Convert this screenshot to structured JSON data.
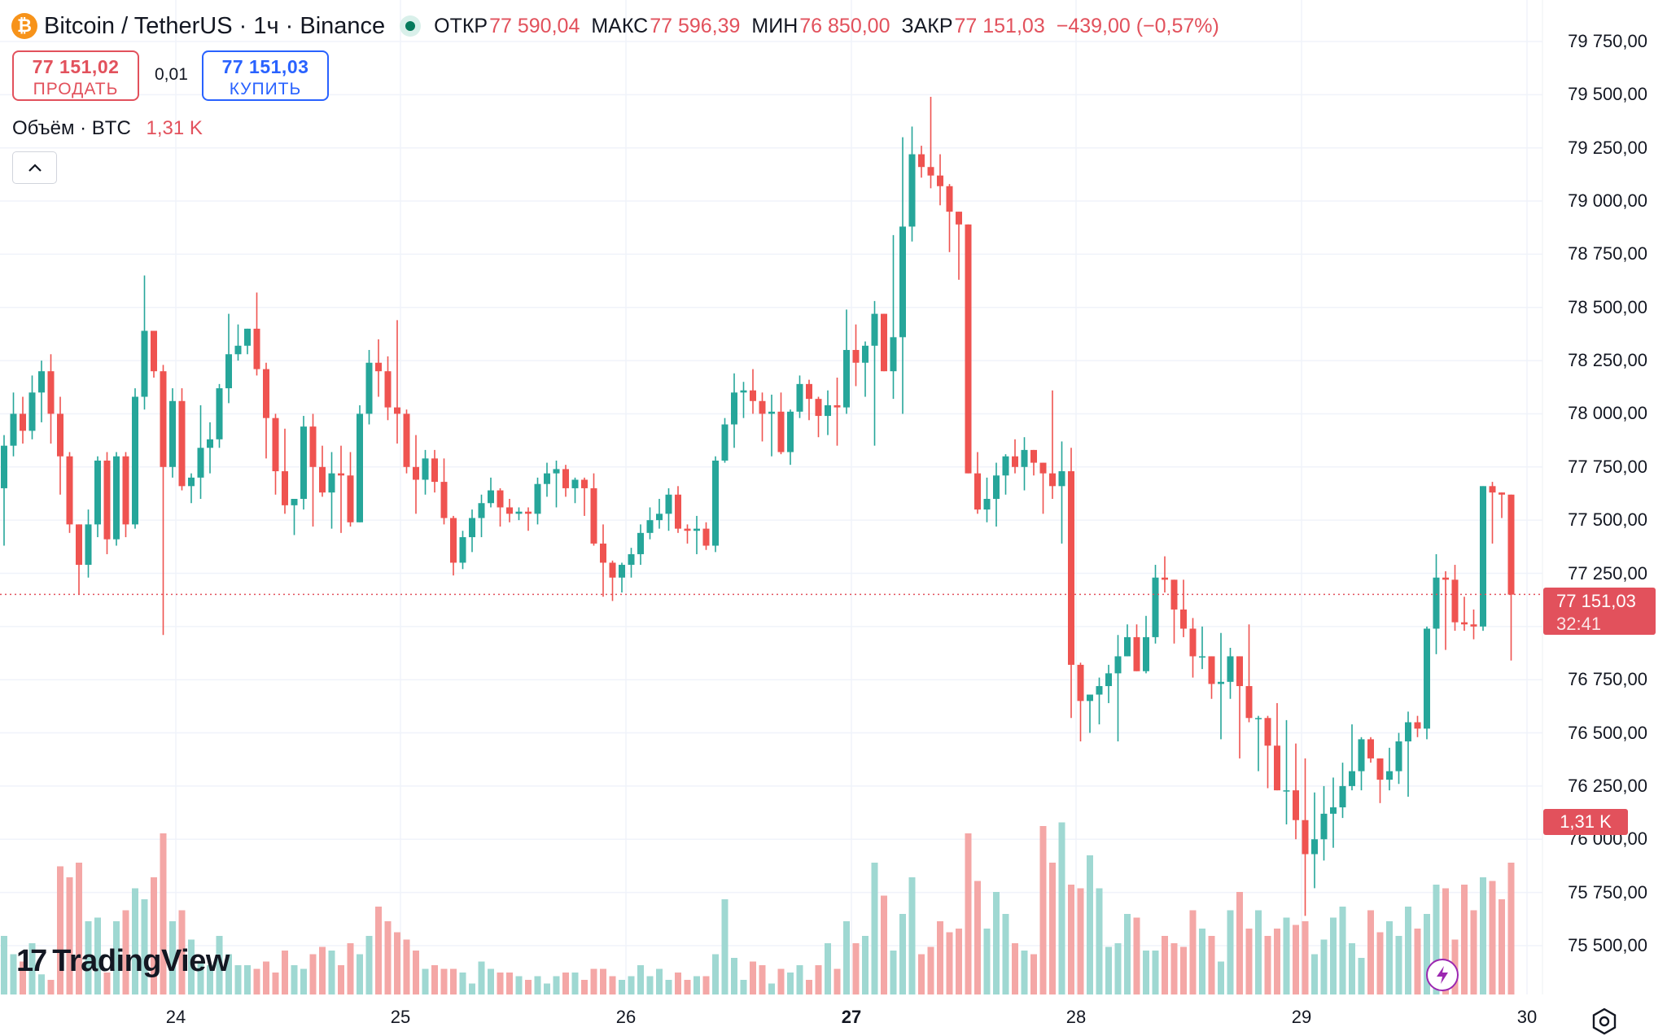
{
  "header": {
    "coin_glyph": "₿",
    "symbol": "Bitcoin / TetherUS · 1ч · Binance",
    "open_label": "ОТКР",
    "open_value": "77 590,04",
    "high_label": "МАКС",
    "high_value": "77 596,39",
    "low_label": "МИН",
    "low_value": "76 850,00",
    "close_label": "ЗАКР",
    "close_value": "77 151,03",
    "change": "−439,00 (−0,57%)"
  },
  "trade": {
    "sell_price": "77 151,02",
    "sell_label": "ПРОДАТЬ",
    "spread": "0,01",
    "buy_price": "77 151,03",
    "buy_label": "КУПИТЬ"
  },
  "volume_legend": {
    "label": "Объём · BTC",
    "value": "1,31 K"
  },
  "price_tag": {
    "value": "77 151,03",
    "countdown": "32:41"
  },
  "volume_tag": "1,31 K",
  "branding": {
    "mark": "17",
    "name": "TradingView"
  },
  "colors": {
    "up": "#26a69a",
    "down": "#ef5350",
    "up_volume": "#9fd8d2",
    "down_volume": "#f4a7a6",
    "tag": "#e2515c"
  },
  "icons": {
    "coin": "bitcoin-icon",
    "collapse": "chevron-up-icon",
    "bolt": "lightning-icon",
    "settings": "gear-icon"
  },
  "chart_data": {
    "type": "candlestick",
    "title": "Bitcoin / TetherUS · 1ч · Binance",
    "interval": "1h",
    "y_ticks": [
      "79 750,00",
      "79 500,00",
      "79 250,00",
      "79 000,00",
      "78 750,00",
      "78 500,00",
      "78 250,00",
      "78 000,00",
      "77 750,00",
      "77 500,00",
      "77 250,00",
      "77 000,00",
      "76 750,00",
      "76 500,00",
      "76 250,00",
      "76 000,00",
      "75 750,00",
      "75 500,00"
    ],
    "y_tick_values": [
      79750,
      79500,
      79250,
      79000,
      78750,
      78500,
      78250,
      78000,
      77750,
      77500,
      77250,
      77000,
      76750,
      76500,
      76250,
      76000,
      75750,
      75500
    ],
    "x_ticks": [
      "24",
      "25",
      "26",
      "27",
      "28",
      "29",
      "30"
    ],
    "bold_x_tick": "27",
    "ylim": [
      75200,
      79950
    ],
    "grid": true,
    "last_price": 77151.03,
    "last_volume": "1,31 K",
    "key_points": [
      {
        "day": "27",
        "max_high": 79490
      },
      {
        "day": "29",
        "min_low": 75640
      }
    ],
    "ohlcv": [
      [
        77650,
        77900,
        77380,
        77850,
        160
      ],
      [
        77850,
        78100,
        77800,
        78000,
        110
      ],
      [
        78000,
        78080,
        77860,
        77920,
        90
      ],
      [
        77920,
        78180,
        77880,
        78100,
        140
      ],
      [
        78100,
        78250,
        77960,
        78200,
        55
      ],
      [
        78200,
        78280,
        77860,
        78000,
        40
      ],
      [
        78000,
        78080,
        77620,
        77800,
        350
      ],
      [
        77800,
        77820,
        77440,
        77480,
        320
      ],
      [
        77480,
        77480,
        77150,
        77290,
        360
      ],
      [
        77290,
        77550,
        77230,
        77480,
        200
      ],
      [
        77480,
        77800,
        77420,
        77780,
        210
      ],
      [
        77780,
        77820,
        77340,
        77410,
        60
      ],
      [
        77410,
        77820,
        77380,
        77800,
        200
      ],
      [
        77800,
        77820,
        77420,
        77480,
        230
      ],
      [
        77480,
        78120,
        77460,
        78080,
        290
      ],
      [
        78080,
        78650,
        78020,
        78390,
        260
      ],
      [
        78390,
        78390,
        78170,
        78200,
        320
      ],
      [
        78200,
        78230,
        76960,
        77750,
        440
      ],
      [
        77750,
        78120,
        77700,
        78060,
        200
      ],
      [
        78060,
        78120,
        77640,
        77660,
        230
      ],
      [
        77660,
        77720,
        77580,
        77700,
        150
      ],
      [
        77700,
        78040,
        77600,
        77840,
        90
      ],
      [
        77840,
        77960,
        77720,
        77880,
        80
      ],
      [
        77880,
        78140,
        77840,
        78120,
        160
      ],
      [
        78120,
        78470,
        78050,
        78280,
        110
      ],
      [
        78280,
        78420,
        78250,
        78320,
        80
      ],
      [
        78320,
        78380,
        78280,
        78400,
        80
      ],
      [
        78400,
        78570,
        78180,
        78210,
        70
      ],
      [
        78210,
        78240,
        77790,
        77980,
        90
      ],
      [
        77980,
        78000,
        77620,
        77730,
        60
      ],
      [
        77730,
        77930,
        77530,
        77570,
        120
      ],
      [
        77570,
        77560,
        77430,
        77600,
        80
      ],
      [
        77600,
        77990,
        77550,
        77940,
        70
      ],
      [
        77940,
        78000,
        77470,
        77750,
        110
      ],
      [
        77750,
        77850,
        77610,
        77630,
        130
      ],
      [
        77630,
        77820,
        77460,
        77720,
        120
      ],
      [
        77720,
        77850,
        77440,
        77710,
        80
      ],
      [
        77710,
        77820,
        77470,
        77490,
        140
      ],
      [
        77490,
        78040,
        77540,
        78000,
        110
      ],
      [
        78000,
        78300,
        77950,
        78240,
        160
      ],
      [
        78240,
        78350,
        78080,
        78200,
        240
      ],
      [
        78200,
        78270,
        77970,
        78030,
        200
      ],
      [
        78030,
        78440,
        77860,
        78000,
        170
      ],
      [
        78000,
        78020,
        77720,
        77750,
        150
      ],
      [
        77750,
        77900,
        77530,
        77690,
        120
      ],
      [
        77690,
        77830,
        77620,
        77790,
        70
      ],
      [
        77790,
        77830,
        77630,
        77680,
        80
      ],
      [
        77680,
        77790,
        77480,
        77510,
        70
      ],
      [
        77510,
        77520,
        77240,
        77300,
        70
      ],
      [
        77300,
        77450,
        77270,
        77420,
        60
      ],
      [
        77420,
        77550,
        77350,
        77510,
        30
      ],
      [
        77510,
        77620,
        77420,
        77580,
        90
      ],
      [
        77580,
        77700,
        77560,
        77640,
        70
      ],
      [
        77640,
        77650,
        77470,
        77560,
        60
      ],
      [
        77560,
        77600,
        77490,
        77530,
        60
      ],
      [
        77530,
        77560,
        77500,
        77540,
        50
      ],
      [
        77540,
        77560,
        77450,
        77530,
        40
      ],
      [
        77530,
        77700,
        77480,
        77670,
        50
      ],
      [
        77670,
        77770,
        77610,
        77720,
        30
      ],
      [
        77720,
        77780,
        77560,
        77740,
        50
      ],
      [
        77740,
        77760,
        77610,
        77650,
        60
      ],
      [
        77650,
        77700,
        77580,
        77690,
        60
      ],
      [
        77690,
        77700,
        77520,
        77650,
        40
      ],
      [
        77650,
        77720,
        77380,
        77390,
        70
      ],
      [
        77390,
        77480,
        77140,
        77300,
        70
      ],
      [
        77300,
        77310,
        77120,
        77230,
        50
      ],
      [
        77230,
        77300,
        77160,
        77290,
        40
      ],
      [
        77290,
        77370,
        77230,
        77340,
        50
      ],
      [
        77340,
        77480,
        77290,
        77440,
        80
      ],
      [
        77440,
        77560,
        77410,
        77500,
        50
      ],
      [
        77500,
        77600,
        77460,
        77530,
        70
      ],
      [
        77530,
        77650,
        77450,
        77620,
        40
      ],
      [
        77620,
        77660,
        77440,
        77460,
        60
      ],
      [
        77460,
        77480,
        77390,
        77450,
        40
      ],
      [
        77450,
        77520,
        77340,
        77460,
        50
      ],
      [
        77460,
        77490,
        77360,
        77380,
        50
      ],
      [
        77380,
        77800,
        77350,
        77780,
        110
      ],
      [
        77780,
        77980,
        77770,
        77950,
        260
      ],
      [
        77950,
        78190,
        77840,
        78100,
        100
      ],
      [
        78100,
        78150,
        77980,
        78110,
        40
      ],
      [
        78110,
        78210,
        78000,
        78060,
        90
      ],
      [
        78060,
        78100,
        77870,
        78000,
        80
      ],
      [
        78000,
        78090,
        77800,
        78010,
        30
      ],
      [
        78010,
        78100,
        77810,
        77820,
        70
      ],
      [
        77820,
        78020,
        77760,
        78010,
        60
      ],
      [
        78010,
        78180,
        77980,
        78140,
        80
      ],
      [
        78140,
        78160,
        77970,
        78070,
        40
      ],
      [
        78070,
        78080,
        77890,
        77990,
        80
      ],
      [
        77990,
        78110,
        77900,
        78040,
        140
      ],
      [
        78040,
        78170,
        77850,
        78030,
        70
      ],
      [
        78030,
        78490,
        78000,
        78300,
        200
      ],
      [
        78300,
        78420,
        78130,
        78240,
        140
      ],
      [
        78240,
        78340,
        78080,
        78320,
        160
      ],
      [
        78320,
        78530,
        77850,
        78470,
        360
      ],
      [
        78470,
        78360,
        78300,
        78200,
        270
      ],
      [
        78200,
        78840,
        78070,
        78360,
        120
      ],
      [
        78360,
        79300,
        78000,
        78880,
        220
      ],
      [
        78880,
        79350,
        78810,
        79220,
        320
      ],
      [
        79220,
        79260,
        79110,
        79160,
        110
      ],
      [
        79160,
        79490,
        79060,
        79120,
        130
      ],
      [
        79120,
        79220,
        78980,
        79070,
        200
      ],
      [
        79070,
        79080,
        78760,
        78950,
        170
      ],
      [
        78950,
        78950,
        78630,
        78890,
        180
      ],
      [
        78890,
        78890,
        77730,
        77720,
        440
      ],
      [
        77720,
        77820,
        77530,
        77550,
        310
      ],
      [
        77550,
        77700,
        77490,
        77600,
        180
      ],
      [
        77600,
        77770,
        77470,
        77710,
        280
      ],
      [
        77710,
        77810,
        77620,
        77800,
        220
      ],
      [
        77800,
        77880,
        77720,
        77750,
        140
      ],
      [
        77750,
        77890,
        77640,
        77830,
        120
      ],
      [
        77830,
        77780,
        77710,
        77770,
        110
      ],
      [
        77770,
        77740,
        77530,
        77720,
        460
      ],
      [
        77720,
        78110,
        77600,
        77660,
        360
      ],
      [
        77660,
        77870,
        77390,
        77730,
        470
      ],
      [
        77730,
        77840,
        76570,
        76820,
        300
      ],
      [
        76820,
        76830,
        76460,
        76650,
        290
      ],
      [
        76650,
        76640,
        76500,
        76680,
        380
      ],
      [
        76680,
        76760,
        76540,
        76720,
        290
      ],
      [
        76720,
        76820,
        76640,
        76780,
        130
      ],
      [
        76780,
        76960,
        76460,
        76860,
        140
      ],
      [
        76860,
        77010,
        76860,
        76950,
        220
      ],
      [
        76950,
        77010,
        76840,
        76790,
        210
      ],
      [
        76790,
        77050,
        76780,
        76950,
        120
      ],
      [
        76950,
        77290,
        76920,
        77230,
        120
      ],
      [
        77230,
        77330,
        77160,
        77220,
        160
      ],
      [
        77220,
        77190,
        76920,
        77080,
        140
      ],
      [
        77080,
        77220,
        76950,
        76990,
        130
      ],
      [
        76990,
        77040,
        76760,
        76860,
        230
      ],
      [
        76860,
        77000,
        76800,
        76860,
        180
      ],
      [
        76860,
        76800,
        76660,
        76730,
        160
      ],
      [
        76730,
        76970,
        76470,
        76740,
        90
      ],
      [
        76740,
        76900,
        76660,
        76860,
        230
      ],
      [
        76860,
        76800,
        76380,
        76720,
        280
      ],
      [
        76720,
        77010,
        76550,
        76570,
        180
      ],
      [
        76570,
        76580,
        76320,
        76570,
        230
      ],
      [
        76570,
        76580,
        76240,
        76440,
        160
      ],
      [
        76440,
        76640,
        76340,
        76230,
        180
      ],
      [
        76230,
        76560,
        76070,
        76230,
        210
      ],
      [
        76230,
        76450,
        76000,
        76090,
        190
      ],
      [
        76090,
        76380,
        75640,
        75930,
        200
      ],
      [
        75930,
        76220,
        75770,
        76000,
        110
      ],
      [
        76000,
        76250,
        75900,
        76120,
        150
      ],
      [
        76120,
        76290,
        75960,
        76150,
        210
      ],
      [
        76150,
        76360,
        76100,
        76250,
        240
      ],
      [
        76250,
        76540,
        76230,
        76320,
        140
      ],
      [
        76320,
        76480,
        76230,
        76470,
        100
      ],
      [
        76470,
        76480,
        76360,
        76380,
        230
      ],
      [
        76380,
        76380,
        76170,
        76280,
        170
      ],
      [
        76280,
        76430,
        76230,
        76320,
        200
      ],
      [
        76320,
        76500,
        76260,
        76460,
        160
      ],
      [
        76460,
        76600,
        76200,
        76550,
        240
      ],
      [
        76550,
        76580,
        76480,
        76520,
        180
      ],
      [
        76520,
        77000,
        76470,
        76990,
        220
      ],
      [
        76990,
        77340,
        76870,
        77230,
        300
      ],
      [
        77230,
        77260,
        76890,
        77220,
        290
      ],
      [
        77220,
        77290,
        76980,
        77020,
        150
      ],
      [
        77020,
        77140,
        76980,
        77010,
        300
      ],
      [
        77010,
        77080,
        76940,
        77000,
        230
      ],
      [
        77000,
        77650,
        76980,
        77660,
        320
      ],
      [
        77660,
        77680,
        77390,
        77630,
        310
      ],
      [
        77630,
        77550,
        77510,
        77620,
        260
      ],
      [
        77620,
        77580,
        76840,
        77150,
        360
      ]
    ]
  }
}
